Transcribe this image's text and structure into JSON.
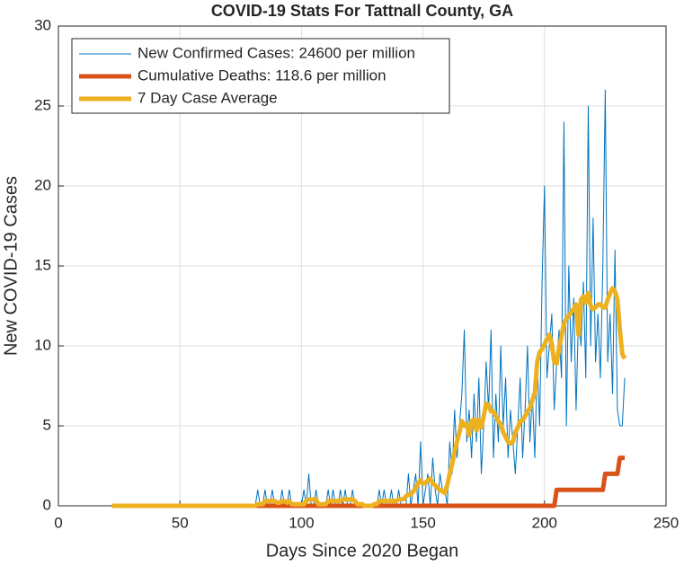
{
  "chart_data": {
    "type": "line",
    "title": "COVID-19 Stats For Tattnall County, GA",
    "x_label": "Days Since 2020 Began",
    "y_label": "New COVID-19 Cases",
    "x": [
      22,
      23,
      24,
      25,
      26,
      27,
      28,
      29,
      30,
      31,
      32,
      33,
      34,
      35,
      36,
      37,
      38,
      39,
      40,
      41,
      42,
      43,
      44,
      45,
      46,
      47,
      48,
      49,
      50,
      51,
      52,
      53,
      54,
      55,
      56,
      57,
      58,
      59,
      60,
      61,
      62,
      63,
      64,
      65,
      66,
      67,
      68,
      69,
      70,
      71,
      72,
      73,
      74,
      75,
      76,
      77,
      78,
      79,
      80,
      81,
      82,
      83,
      84,
      85,
      86,
      87,
      88,
      89,
      90,
      91,
      92,
      93,
      94,
      95,
      96,
      97,
      98,
      99,
      100,
      101,
      102,
      103,
      104,
      105,
      106,
      107,
      108,
      109,
      110,
      111,
      112,
      113,
      114,
      115,
      116,
      117,
      118,
      119,
      120,
      121,
      122,
      123,
      124,
      125,
      126,
      127,
      128,
      129,
      130,
      131,
      132,
      133,
      134,
      135,
      136,
      137,
      138,
      139,
      140,
      141,
      142,
      143,
      144,
      145,
      146,
      147,
      148,
      149,
      150,
      151,
      152,
      153,
      154,
      155,
      156,
      157,
      158,
      159,
      160,
      161,
      162,
      163,
      164,
      165,
      166,
      167,
      168,
      169,
      170,
      171,
      172,
      173,
      174,
      175,
      176,
      177,
      178,
      179,
      180,
      181,
      182,
      183,
      184,
      185,
      186,
      187,
      188,
      189,
      190,
      191,
      192,
      193,
      194,
      195,
      196,
      197,
      198,
      199,
      200,
      201,
      202,
      203,
      204,
      205,
      206,
      207,
      208,
      209,
      210,
      211,
      212,
      213,
      214,
      215,
      216,
      217,
      218,
      219,
      220,
      221,
      222,
      223,
      224,
      225,
      226,
      227,
      228,
      229,
      230,
      231,
      232,
      233
    ],
    "series": [
      {
        "name": "New Confirmed Cases: 24600 per million",
        "color": "#0072bd",
        "values": [
          0,
          0,
          0,
          0,
          0,
          0,
          0,
          0,
          0,
          0,
          0,
          0,
          0,
          0,
          0,
          0,
          0,
          0,
          0,
          0,
          0,
          0,
          0,
          0,
          0,
          0,
          0,
          0,
          0,
          0,
          0,
          0,
          0,
          0,
          0,
          0,
          0,
          0,
          0,
          0,
          0,
          0,
          0,
          0,
          0,
          0,
          0,
          0,
          0,
          0,
          0,
          0,
          0,
          0,
          0,
          0,
          0,
          0,
          0,
          0,
          1,
          0,
          0,
          1,
          0,
          0,
          1,
          0,
          0,
          0,
          1,
          0,
          0,
          1,
          0,
          0,
          0,
          0,
          0,
          1,
          0,
          2,
          0,
          0,
          1,
          0,
          0,
          0,
          0,
          1,
          0,
          1,
          0,
          0,
          1,
          0,
          1,
          0,
          0,
          1,
          0,
          0,
          0,
          0,
          0,
          0,
          0,
          0,
          0,
          0,
          1,
          0,
          1,
          0,
          0,
          1,
          0,
          0,
          1,
          0,
          0,
          0,
          2,
          0,
          1,
          2,
          0,
          4,
          0,
          1,
          2,
          0,
          3,
          1,
          0,
          2,
          1,
          1,
          0,
          4,
          2,
          6,
          3,
          5,
          7,
          11,
          4,
          6,
          3,
          7,
          4,
          8,
          2,
          5,
          9,
          6,
          11,
          3,
          7,
          4,
          10,
          5,
          8,
          3,
          6,
          4,
          2,
          5,
          8,
          3,
          6,
          10,
          4,
          7,
          3,
          9,
          5,
          14,
          20,
          8,
          10,
          12,
          6,
          9,
          11,
          8,
          24,
          5,
          15,
          9,
          13,
          6,
          12,
          10,
          14,
          8,
          25,
          10,
          18,
          9,
          12,
          8,
          15,
          26,
          9,
          12,
          7,
          16,
          6,
          5,
          5,
          8
        ]
      },
      {
        "name": "Cumulative Deaths: 118.6 per million",
        "color": "#d95319",
        "values": [
          0,
          0,
          0,
          0,
          0,
          0,
          0,
          0,
          0,
          0,
          0,
          0,
          0,
          0,
          0,
          0,
          0,
          0,
          0,
          0,
          0,
          0,
          0,
          0,
          0,
          0,
          0,
          0,
          0,
          0,
          0,
          0,
          0,
          0,
          0,
          0,
          0,
          0,
          0,
          0,
          0,
          0,
          0,
          0,
          0,
          0,
          0,
          0,
          0,
          0,
          0,
          0,
          0,
          0,
          0,
          0,
          0,
          0,
          0,
          0,
          0,
          0,
          0,
          0,
          0,
          0,
          0,
          0,
          0,
          0,
          0,
          0,
          0,
          0,
          0,
          0,
          0,
          0,
          0,
          0,
          0,
          0,
          0,
          0,
          0,
          0,
          0,
          0,
          0,
          0,
          0,
          0,
          0,
          0,
          0,
          0,
          0,
          0,
          0,
          0,
          0,
          0,
          0,
          0,
          0,
          0,
          0,
          0,
          0,
          0,
          0,
          0,
          0,
          0,
          0,
          0,
          0,
          0,
          0,
          0,
          0,
          0,
          0,
          0,
          0,
          0,
          0,
          0,
          0,
          0,
          0,
          0,
          0,
          0,
          0,
          0,
          0,
          0,
          0,
          0,
          0,
          0,
          0,
          0,
          0,
          0,
          0,
          0,
          0,
          0,
          0,
          0,
          0,
          0,
          0,
          0,
          0,
          0,
          0,
          0,
          0,
          0,
          0,
          0,
          0,
          0,
          0,
          0,
          0,
          0,
          0,
          0,
          0,
          0,
          0,
          0,
          0,
          0,
          0,
          0,
          0,
          0,
          0,
          1,
          1,
          1,
          1,
          1,
          1,
          1,
          1,
          1,
          1,
          1,
          1,
          1,
          1,
          1,
          1,
          1,
          1,
          1,
          1,
          2,
          2,
          2,
          2,
          2,
          2,
          3,
          3,
          3
        ]
      },
      {
        "name": "7 Day Case Average",
        "color": "#edb120",
        "values": [
          0,
          0,
          0,
          0,
          0,
          0,
          0,
          0,
          0,
          0,
          0,
          0,
          0,
          0,
          0,
          0,
          0,
          0,
          0,
          0,
          0,
          0,
          0,
          0,
          0,
          0,
          0,
          0,
          0,
          0,
          0,
          0,
          0,
          0,
          0,
          0,
          0,
          0,
          0,
          0,
          0,
          0,
          0,
          0,
          0,
          0,
          0,
          0,
          0,
          0,
          0,
          0,
          0,
          0,
          0,
          0,
          0,
          0,
          0,
          0,
          0.1,
          0.1,
          0.1,
          0.3,
          0.3,
          0.3,
          0.3,
          0.3,
          0.2,
          0.2,
          0.3,
          0.3,
          0.2,
          0.3,
          0.1,
          0.1,
          0.1,
          0.1,
          0.1,
          0.1,
          0.3,
          0.4,
          0.4,
          0.4,
          0.4,
          0.1,
          0.1,
          0.1,
          0.1,
          0.3,
          0.3,
          0.3,
          0.3,
          0.3,
          0.3,
          0.4,
          0.4,
          0.4,
          0.4,
          0.4,
          0.3,
          0.1,
          0.1,
          0.1,
          0,
          0,
          0,
          0,
          0.1,
          0.1,
          0.3,
          0.3,
          0.3,
          0.3,
          0.3,
          0.3,
          0.3,
          0.3,
          0.4,
          0.4,
          0.4,
          0.6,
          0.7,
          0.7,
          0.9,
          1.1,
          1.4,
          1.6,
          1.4,
          1.4,
          1.6,
          1.7,
          1.4,
          1.3,
          1.1,
          1.0,
          0.9,
          0.8,
          1.3,
          2.0,
          2.6,
          3.4,
          4.0,
          4.6,
          5.3,
          5.0,
          5.1,
          4.4,
          5.3,
          5.4,
          4.7,
          5.4,
          4.9,
          5.6,
          6.4,
          6.3,
          5.9,
          5.9,
          5.6,
          5.3,
          5.1,
          4.6,
          4.3,
          4.0,
          3.9,
          4.0,
          4.6,
          4.9,
          5.3,
          5.3,
          5.6,
          5.9,
          6.1,
          6.6,
          7.0,
          9.0,
          9.6,
          9.8,
          10.1,
          10.4,
          10.7,
          10.1,
          9.0,
          8.9,
          9.9,
          10.6,
          11.4,
          11.7,
          11.9,
          12.1,
          12.3,
          12.6,
          10.7,
          12.9,
          13.1,
          12.7,
          13.3,
          12.5,
          12.3,
          12.4,
          12.6,
          12.6,
          12.4,
          12.4,
          12.9,
          13.3,
          13.6,
          13.4,
          12.9,
          11.0,
          9.5,
          9.2
        ]
      }
    ],
    "xlim": [
      0,
      250
    ],
    "xticks": [
      0,
      50,
      100,
      150,
      200,
      250
    ],
    "ylim": [
      0,
      30
    ],
    "yticks": [
      0,
      5,
      10,
      15,
      20,
      25,
      30
    ],
    "grid": true,
    "legend": "upper left"
  }
}
